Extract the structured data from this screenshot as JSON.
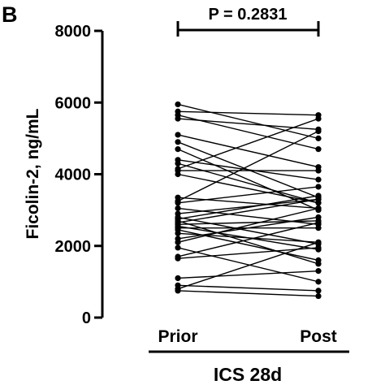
{
  "panel_label": "B",
  "chart_data": {
    "type": "line",
    "title": "",
    "ylabel": "Ficolin-2, ng/mL",
    "xlabel": "ICS 28d",
    "categories": [
      "Prior",
      "Post"
    ],
    "ylim": [
      0,
      8000
    ],
    "yticks": [
      "0",
      "2000",
      "4000",
      "6000",
      "8000"
    ],
    "annotation": "P = 0.2831",
    "grid": false,
    "legend": "none",
    "pairs": [
      [
        5950,
        5000
      ],
      [
        5750,
        5650
      ],
      [
        5650,
        4700
      ],
      [
        5550,
        5250
      ],
      [
        5100,
        4200
      ],
      [
        4900,
        3350
      ],
      [
        4700,
        3000
      ],
      [
        4400,
        3850
      ],
      [
        4300,
        3200
      ],
      [
        4150,
        5550
      ],
      [
        4100,
        4100
      ],
      [
        4000,
        3200
      ],
      [
        3350,
        3050
      ],
      [
        3250,
        5200
      ],
      [
        3200,
        3650
      ],
      [
        3050,
        2600
      ],
      [
        2900,
        3300
      ],
      [
        2800,
        2050
      ],
      [
        2750,
        3400
      ],
      [
        2700,
        1500
      ],
      [
        2650,
        3300
      ],
      [
        2600,
        2700
      ],
      [
        2550,
        1900
      ],
      [
        2500,
        2500
      ],
      [
        2450,
        1600
      ],
      [
        2350,
        2100
      ],
      [
        2200,
        2800
      ],
      [
        2100,
        3050
      ],
      [
        1950,
        1000
      ],
      [
        1700,
        2650
      ],
      [
        1650,
        1950
      ],
      [
        1100,
        1300
      ],
      [
        900,
        750
      ],
      [
        800,
        2100
      ],
      [
        750,
        600
      ]
    ]
  },
  "style": {
    "line_color": "#000000",
    "marker_color": "#000000"
  }
}
